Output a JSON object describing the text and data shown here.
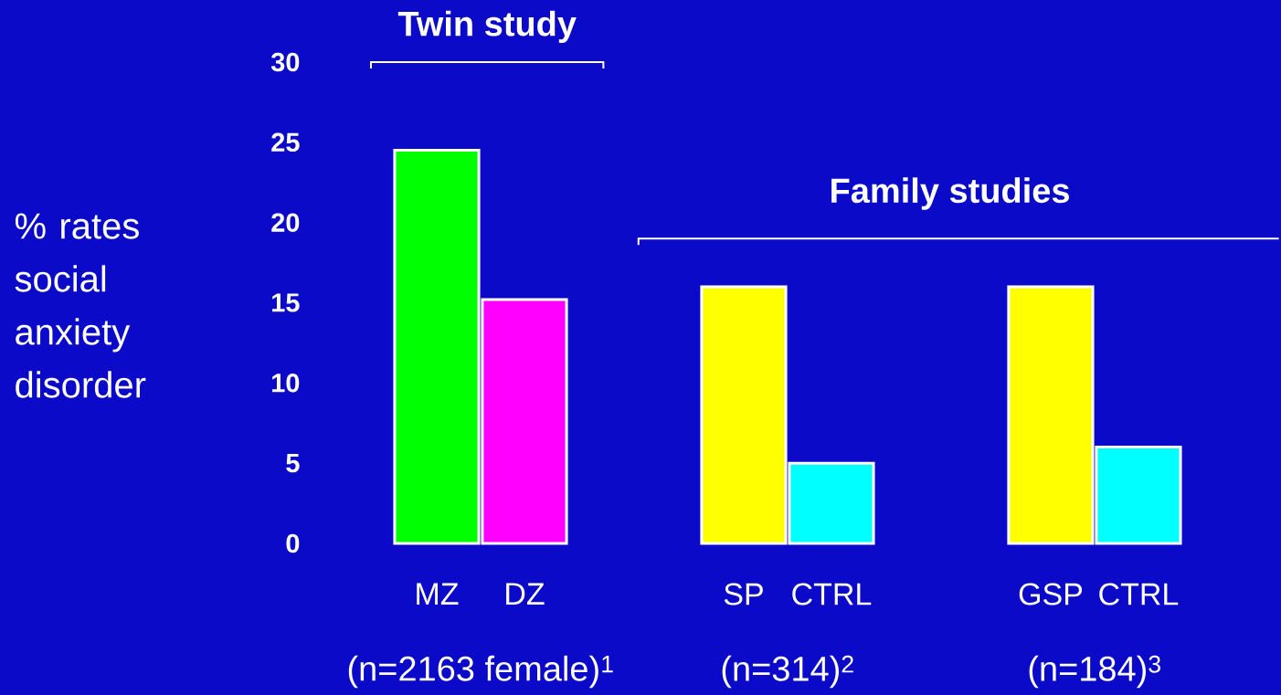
{
  "chart_data": {
    "type": "bar",
    "categories": [
      "MZ",
      "DZ",
      "SP",
      "CTRL",
      "GSP",
      "CTRL"
    ],
    "values": [
      24.5,
      15.2,
      16,
      5,
      16,
      6
    ],
    "colors": [
      "#00ff00",
      "#ff00ff",
      "#ffff00",
      "#00ffff",
      "#ffff00",
      "#00ffff"
    ],
    "ylim": [
      0,
      30
    ],
    "yticks": [
      0,
      5,
      10,
      15,
      20,
      25,
      30
    ],
    "ylabel": "% rates social anxiety disorder",
    "annotations": [
      "Twin study",
      "Family studies",
      "(n=2163 female)$^{1}$",
      "(n=314)$^{2}$",
      "(n=184)$^{3}$"
    ]
  }
}
